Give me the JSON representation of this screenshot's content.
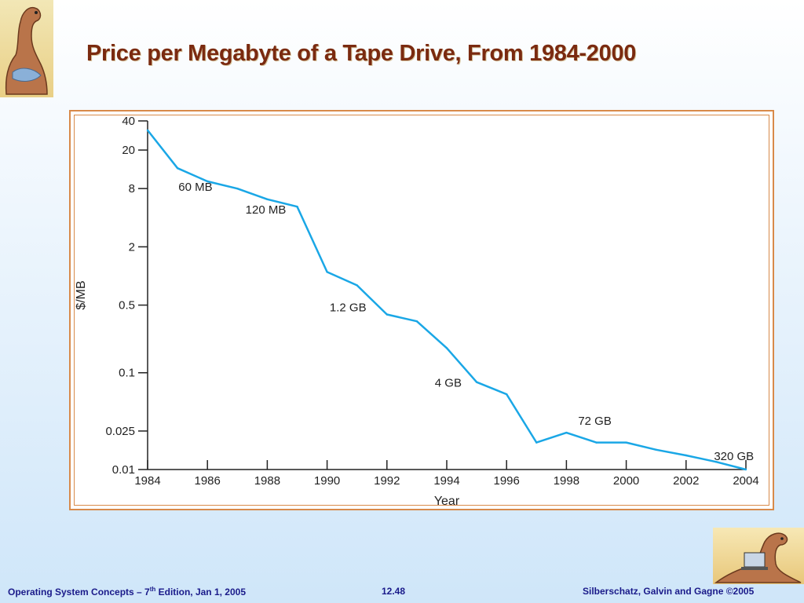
{
  "slide": {
    "title": "Price per Megabyte of a Tape Drive, From 1984-2000",
    "footer_left_pre": "Operating System Concepts – 7",
    "footer_left_sup": "th",
    "footer_left_post": " Edition, Jan 1, 2005",
    "footer_center": "12.48",
    "footer_right": "Silberschatz, Galvin and Gagne ©2005"
  },
  "chart_data": {
    "type": "line",
    "xlabel": "Year",
    "ylabel": "$/MB",
    "yscale": "log",
    "xlim": [
      1984,
      2004
    ],
    "ylim": [
      0.01,
      40
    ],
    "x_ticks": [
      1984,
      1986,
      1988,
      1990,
      1992,
      1994,
      1996,
      1998,
      2000,
      2002,
      2004
    ],
    "y_ticks": [
      40,
      20,
      8,
      2,
      0.5,
      0.1,
      0.025,
      0.01
    ],
    "y_tick_labels": [
      "40",
      "20",
      "8",
      "2",
      "0.5",
      "0.1",
      "0.025",
      "0.01"
    ],
    "series": [
      {
        "color": "#1aa7e6",
        "x": [
          1984,
          1985,
          1986,
          1987,
          1988,
          1989,
          1990,
          1991,
          1992,
          1993,
          1994,
          1995,
          1996,
          1997,
          1998,
          1999,
          2000,
          2001,
          2002,
          2003,
          2004
        ],
        "y": [
          32,
          13,
          9.5,
          8,
          6.2,
          5.2,
          1.1,
          0.8,
          0.4,
          0.34,
          0.18,
          0.08,
          0.06,
          0.019,
          0.024,
          0.019,
          0.019,
          0.016,
          0.014,
          0.012,
          0.01
        ]
      }
    ],
    "annotations": [
      {
        "text": "60 MB",
        "x": 1985.6,
        "y": 7.6
      },
      {
        "text": "120 MB",
        "x": 1987.95,
        "y": 4.4
      },
      {
        "text": "1.2 GB",
        "x": 1990.7,
        "y": 0.43
      },
      {
        "text": "4 GB",
        "x": 1994.05,
        "y": 0.072
      },
      {
        "text": "72 GB",
        "x": 1998.95,
        "y": 0.029
      },
      {
        "text": "320 GB",
        "x": 2003.6,
        "y": 0.0125
      }
    ],
    "grid": false
  }
}
